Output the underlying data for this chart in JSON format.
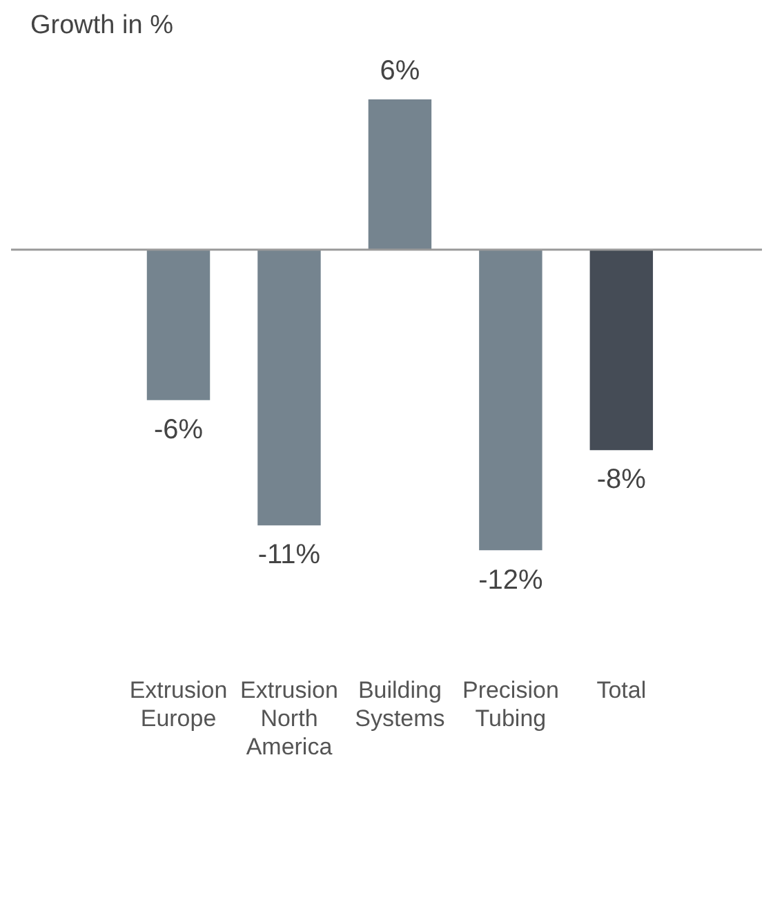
{
  "chart_data": {
    "type": "bar",
    "ylabel": "Growth in %",
    "categories": [
      "Extrusion Europe",
      "Extrusion North America",
      "Building Systems",
      "Precision Tubing",
      "Total"
    ],
    "values": [
      -6,
      -11,
      6,
      -12,
      -8
    ],
    "colors": [
      "#75848f",
      "#75848f",
      "#75848f",
      "#75848f",
      "#454c56"
    ],
    "value_labels": [
      "-6%",
      "-11%",
      "6%",
      "-12%",
      "-8%"
    ],
    "legend": false
  }
}
